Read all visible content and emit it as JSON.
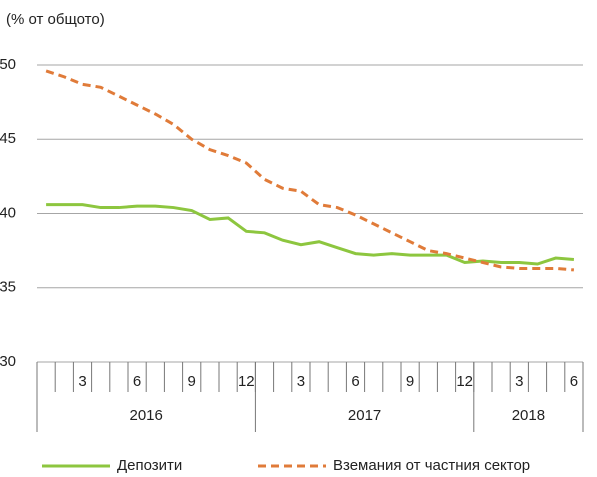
{
  "chart_data": {
    "type": "line",
    "subtitle": "(% от общото)",
    "categories": [
      null,
      null,
      "3",
      null,
      null,
      "6",
      null,
      null,
      "9",
      null,
      null,
      "12",
      null,
      null,
      "3",
      null,
      null,
      "6",
      null,
      null,
      "9",
      null,
      null,
      "12",
      null,
      null,
      "3",
      null,
      null,
      "6"
    ],
    "groups": [
      {
        "label": "2016",
        "count": 12
      },
      {
        "label": "2017",
        "count": 12
      },
      {
        "label": "2018",
        "count": 6
      }
    ],
    "series": [
      {
        "name": "Депозити",
        "color": "#8dc63f",
        "dashed": false,
        "values": [
          40.6,
          40.6,
          40.6,
          40.4,
          40.4,
          40.5,
          40.5,
          40.4,
          40.2,
          39.6,
          39.7,
          38.8,
          38.7,
          38.2,
          37.9,
          38.1,
          37.7,
          37.3,
          37.2,
          37.3,
          37.2,
          37.2,
          37.2,
          36.7,
          36.8,
          36.7,
          36.7,
          36.6,
          37.0,
          36.9
        ]
      },
      {
        "name": "Вземания от частния сектор",
        "color": "#e07b39",
        "dashed": true,
        "values": [
          49.6,
          49.2,
          48.7,
          48.5,
          47.9,
          47.3,
          46.7,
          46.0,
          45.0,
          44.3,
          43.9,
          43.4,
          42.3,
          41.7,
          41.5,
          40.6,
          40.4,
          39.9,
          39.3,
          38.7,
          38.1,
          37.5,
          37.3,
          37.0,
          36.7,
          36.4,
          36.3,
          36.3,
          36.3,
          36.2
        ]
      }
    ],
    "ylim": [
      30,
      50
    ],
    "yticks": [
      30,
      35,
      40,
      45,
      50
    ],
    "grid": true,
    "legend": "bottom"
  }
}
